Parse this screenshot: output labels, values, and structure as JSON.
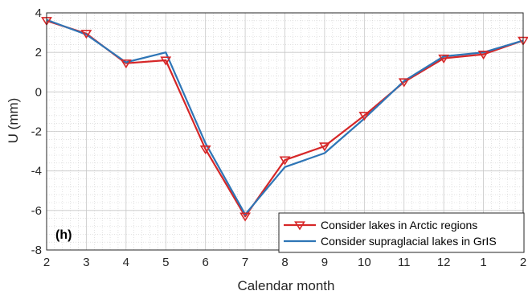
{
  "chart_data": {
    "type": "line",
    "xlabel": "Calendar month",
    "ylabel": "U (mm)",
    "panel_label": "(h)",
    "categories": [
      "2",
      "3",
      "4",
      "5",
      "6",
      "7",
      "8",
      "9",
      "10",
      "11",
      "12",
      "1",
      "2"
    ],
    "ylim": [
      -8,
      4
    ],
    "yticks": [
      "4",
      "2",
      "0",
      "-2",
      "-4",
      "-6",
      "-8"
    ],
    "grid": true,
    "minor_grid": true,
    "legend_position": "bottom-right",
    "series": [
      {
        "name": "Consider lakes in Arctic regions",
        "color": "#d62728",
        "marker": "down-triangle",
        "values": [
          3.6,
          2.95,
          1.45,
          1.6,
          -2.9,
          -6.3,
          -3.45,
          -2.75,
          -1.2,
          0.5,
          1.7,
          1.9,
          2.6
        ]
      },
      {
        "name": "Consider supraglacial lakes in GrIS",
        "color": "#2e75b6",
        "marker": "none",
        "values": [
          3.65,
          2.9,
          1.5,
          2.0,
          -2.6,
          -6.2,
          -3.8,
          -3.1,
          -1.35,
          0.55,
          1.8,
          2.0,
          2.6
        ]
      }
    ]
  }
}
